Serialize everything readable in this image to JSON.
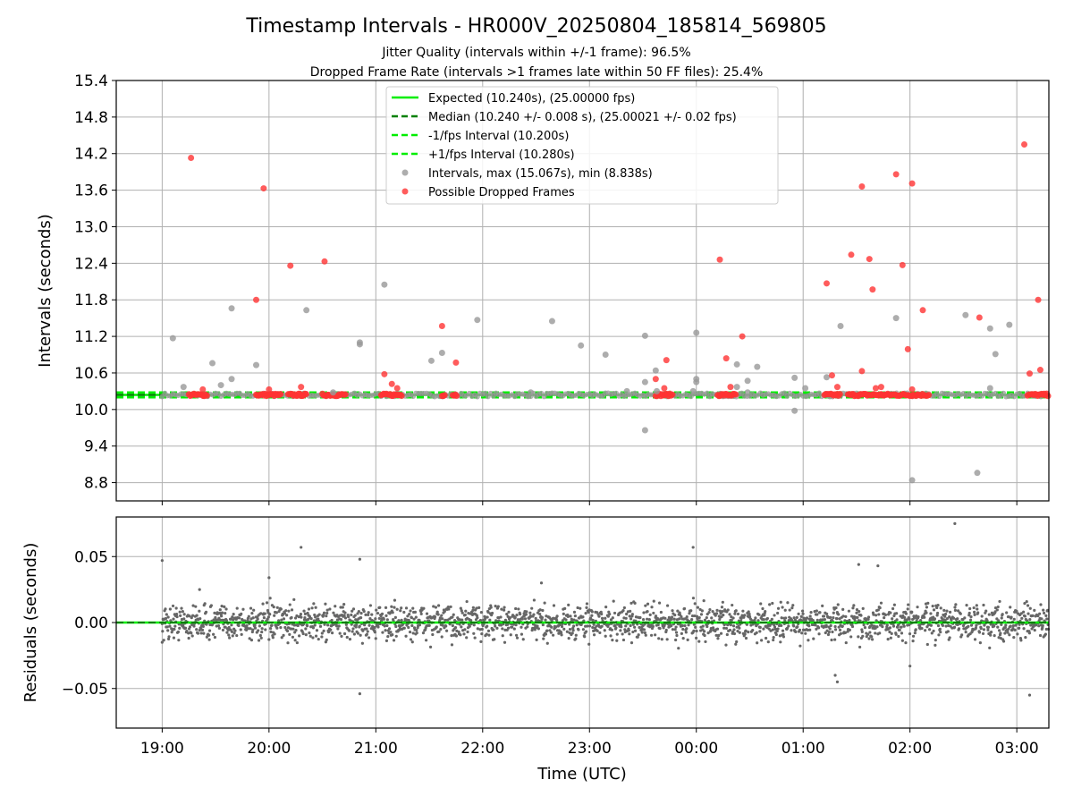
{
  "figure": {
    "title": "Timestamp Intervals - HR000V_20250804_185814_569805",
    "subtitle1": "Jitter Quality (intervals within +/-1 frame): 96.5%",
    "subtitle2": "Dropped Frame Rate (intervals >1 frames late within 50 FF files): 25.4%"
  },
  "colors": {
    "expected": "#00ee00",
    "median": "#008000",
    "interval_bounds": "#00ee00",
    "intervals_points": "#999999",
    "dropped_points": "#ff3333",
    "residual_points": "#666666",
    "grid": "#b0b0b0"
  },
  "chart_data": [
    {
      "type": "scatter",
      "panel": "top",
      "ylabel": "Intervals (seconds)",
      "xlabel": "",
      "ylim": [
        8.5,
        15.4
      ],
      "xlim_hours": [
        18.57,
        27.3
      ],
      "yticks": [
        "15.4",
        "14.8",
        "14.2",
        "13.6",
        "13.0",
        "12.4",
        "11.8",
        "11.2",
        "10.6",
        "10.0",
        "9.4",
        "8.8"
      ],
      "ytick_values": [
        15.4,
        14.8,
        14.2,
        13.6,
        13.0,
        12.4,
        11.8,
        11.2,
        10.6,
        10.0,
        9.4,
        8.8
      ],
      "grid": true,
      "legend_position": "upper center",
      "lines": [
        {
          "name": "Expected (10.240s), (25.00000 fps)",
          "y": 10.24,
          "style": "solid",
          "color": "#00ee00"
        },
        {
          "name": "Median (10.240 +/- 0.008 s), (25.00021 +/- 0.02 fps)",
          "y": 10.24,
          "style": "dashed",
          "color": "#008000"
        },
        {
          "name": "-1/fps Interval (10.200s)",
          "y": 10.2,
          "style": "dashed",
          "color": "#00ee00"
        },
        {
          "name": "+1/fps Interval (10.280s)",
          "y": 10.28,
          "style": "dashed",
          "color": "#00ee00"
        }
      ],
      "series": [
        {
          "name": "Intervals, max (15.067s), min (8.838s)",
          "color": "#999999",
          "points": [
            [
              19.1,
              11.17
            ],
            [
              19.2,
              10.37
            ],
            [
              19.47,
              10.76
            ],
            [
              19.55,
              10.4
            ],
            [
              19.65,
              11.66
            ],
            [
              19.65,
              10.5
            ],
            [
              19.88,
              10.73
            ],
            [
              20.35,
              11.63
            ],
            [
              20.85,
              11.1
            ],
            [
              20.85,
              11.07
            ],
            [
              21.08,
              12.05
            ],
            [
              21.52,
              10.8
            ],
            [
              21.62,
              10.93
            ],
            [
              21.95,
              11.47
            ],
            [
              22.65,
              11.45
            ],
            [
              22.92,
              11.05
            ],
            [
              23.15,
              10.9
            ],
            [
              23.35,
              10.3
            ],
            [
              23.52,
              11.21
            ],
            [
              23.52,
              10.45
            ],
            [
              23.52,
              9.66
            ],
            [
              23.62,
              10.64
            ],
            [
              23.63,
              10.3
            ],
            [
              23.97,
              10.3
            ],
            [
              24.0,
              11.26
            ],
            [
              24.0,
              10.5
            ],
            [
              24.0,
              10.45
            ],
            [
              24.38,
              10.74
            ],
            [
              24.38,
              10.37
            ],
            [
              24.48,
              10.47
            ],
            [
              24.48,
              10.28
            ],
            [
              24.57,
              10.7
            ],
            [
              24.92,
              10.52
            ],
            [
              24.92,
              9.98
            ],
            [
              25.22,
              10.53
            ],
            [
              25.35,
              11.37
            ],
            [
              25.87,
              11.5
            ],
            [
              26.02,
              8.84
            ],
            [
              26.52,
              11.55
            ],
            [
              26.63,
              8.96
            ],
            [
              26.75,
              11.33
            ],
            [
              26.75,
              10.35
            ],
            [
              26.8,
              10.91
            ],
            [
              26.93,
              11.39
            ],
            [
              25.02,
              10.35
            ],
            [
              22.45,
              10.28
            ],
            [
              20.6,
              10.28
            ]
          ]
        },
        {
          "name": "Possible Dropped Frames",
          "color": "#ff3333",
          "points": [
            [
              19.27,
              14.13
            ],
            [
              19.38,
              10.33
            ],
            [
              19.88,
              11.8
            ],
            [
              19.95,
              13.63
            ],
            [
              20.0,
              10.33
            ],
            [
              20.2,
              12.36
            ],
            [
              20.3,
              10.37
            ],
            [
              20.52,
              12.43
            ],
            [
              21.08,
              10.58
            ],
            [
              21.15,
              10.42
            ],
            [
              21.2,
              10.35
            ],
            [
              21.62,
              11.37
            ],
            [
              21.75,
              10.77
            ],
            [
              23.62,
              10.5
            ],
            [
              23.7,
              10.35
            ],
            [
              23.72,
              10.81
            ],
            [
              24.22,
              12.46
            ],
            [
              24.28,
              10.84
            ],
            [
              24.32,
              10.37
            ],
            [
              24.43,
              11.2
            ],
            [
              25.22,
              12.07
            ],
            [
              25.27,
              10.56
            ],
            [
              25.32,
              10.37
            ],
            [
              25.45,
              12.54
            ],
            [
              25.55,
              13.66
            ],
            [
              25.55,
              10.63
            ],
            [
              25.62,
              12.47
            ],
            [
              25.65,
              11.97
            ],
            [
              25.68,
              10.35
            ],
            [
              25.73,
              10.37
            ],
            [
              25.87,
              13.86
            ],
            [
              25.93,
              12.37
            ],
            [
              25.98,
              10.99
            ],
            [
              26.02,
              13.71
            ],
            [
              26.02,
              10.33
            ],
            [
              26.12,
              11.63
            ],
            [
              26.65,
              11.51
            ],
            [
              27.07,
              14.35
            ],
            [
              27.12,
              10.59
            ],
            [
              27.2,
              11.8
            ],
            [
              27.22,
              10.65
            ]
          ]
        }
      ]
    },
    {
      "type": "scatter",
      "panel": "bottom",
      "ylabel": "Residuals (seconds)",
      "xlabel": "Time (UTC)",
      "ylim": [
        -0.08,
        0.08
      ],
      "xlim_hours": [
        18.57,
        27.3
      ],
      "yticks": [
        "0.05",
        "0.00",
        "−0.05"
      ],
      "ytick_values": [
        0.05,
        0.0,
        -0.05
      ],
      "xticks": [
        "19:00",
        "20:00",
        "21:00",
        "22:00",
        "23:00",
        "00:00",
        "01:00",
        "02:00",
        "03:00"
      ],
      "xtick_hours": [
        19,
        20,
        21,
        22,
        23,
        24,
        25,
        26,
        27
      ],
      "grid": true,
      "zero_line": {
        "y": 0.0,
        "color": "#00ee00",
        "median_color": "#008000"
      },
      "residual_summary": {
        "start_hour": 19.0,
        "end_hour": 27.3,
        "typical_spread": 0.012,
        "count": 2200
      },
      "outliers": [
        [
          19.0,
          0.047
        ],
        [
          20.3,
          0.057
        ],
        [
          20.85,
          0.048
        ],
        [
          23.97,
          0.057
        ],
        [
          26.42,
          0.075
        ],
        [
          20.85,
          -0.054
        ],
        [
          27.12,
          -0.055
        ],
        [
          25.32,
          -0.045
        ],
        [
          25.3,
          -0.04
        ],
        [
          26.0,
          -0.033
        ],
        [
          19.0,
          -0.015
        ],
        [
          19.35,
          0.025
        ],
        [
          20.0,
          0.034
        ],
        [
          22.55,
          0.03
        ],
        [
          25.7,
          0.043
        ],
        [
          25.52,
          0.044
        ]
      ]
    }
  ]
}
